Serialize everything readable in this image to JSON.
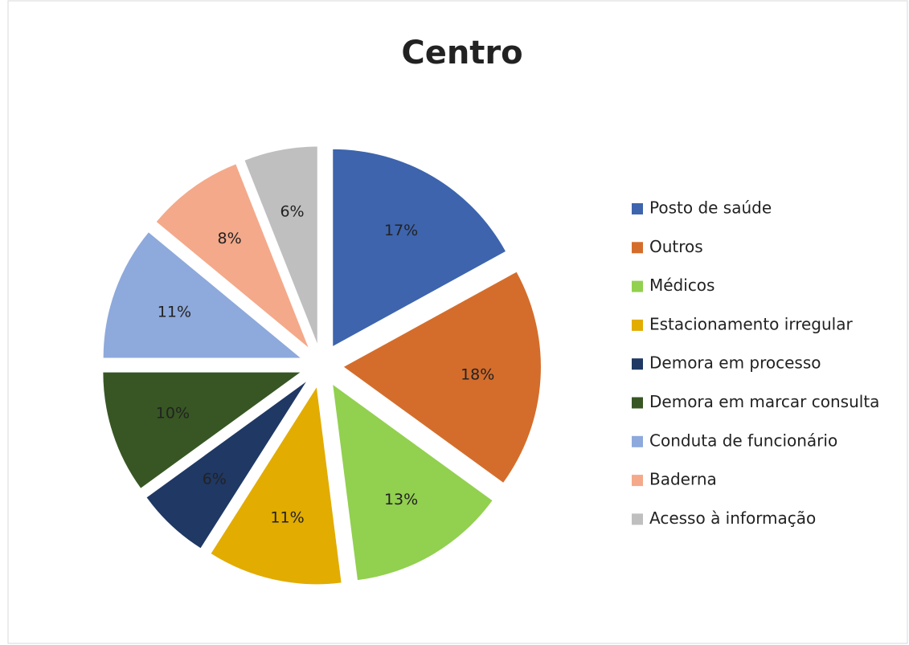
{
  "chart_data": {
    "type": "pie",
    "title": "Centro",
    "categories": [
      "Posto de saúde",
      "Outros",
      "Médicos",
      "Estacionamento irregular",
      "Demora em processo",
      "Demora em marcar consulta",
      "Conduta de funcionário",
      "Baderna",
      "Acesso à informação"
    ],
    "values": [
      17,
      18,
      13,
      11,
      6,
      10,
      11,
      8,
      6
    ],
    "value_labels": [
      "17%",
      "18%",
      "13%",
      "11%",
      "6%",
      "10%",
      "11%",
      "8%",
      "6%"
    ],
    "colors": [
      "#3d64ad",
      "#d46d2b",
      "#92d050",
      "#e2ac00",
      "#1f3864",
      "#375623",
      "#8ea9db",
      "#f4a98a",
      "#bfbfbf"
    ],
    "legend": "right"
  }
}
